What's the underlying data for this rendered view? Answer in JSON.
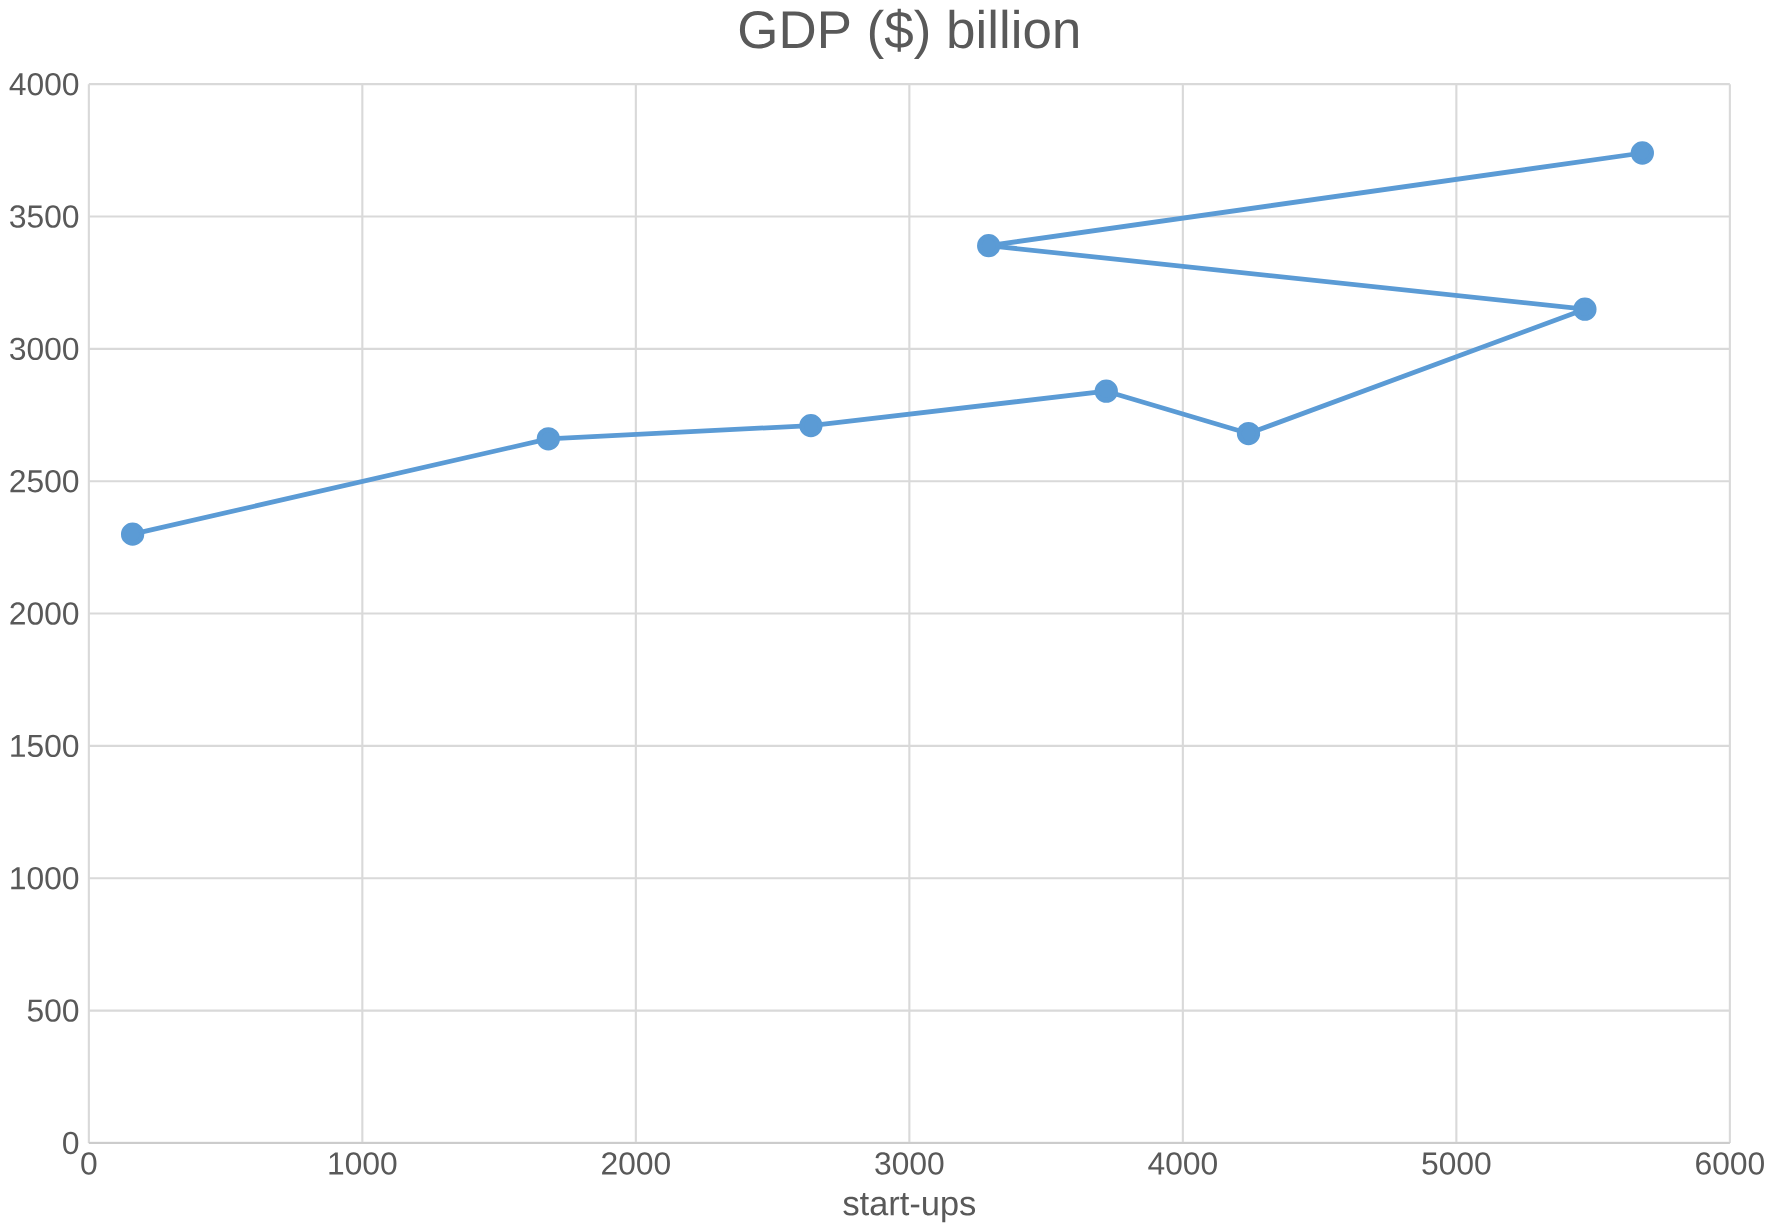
{
  "chart_data": {
    "type": "line",
    "title": "GDP ($) billion",
    "xlabel": "start-ups",
    "x": [
      160,
      1680,
      2640,
      3720,
      4240,
      5470,
      3290,
      5680
    ],
    "series": [
      {
        "color": "#5b9bd5",
        "values": [
          2300,
          2660,
          2710,
          2840,
          2680,
          3150,
          3390,
          3740
        ]
      }
    ],
    "xlim": [
      0,
      6000
    ],
    "xticks": [
      0,
      1000,
      2000,
      3000,
      4000,
      5000,
      6000
    ],
    "ylim": [
      0,
      4000
    ],
    "yticks": [
      0,
      500,
      1000,
      1500,
      2000,
      2500,
      3000,
      3500,
      4000
    ],
    "grid": true,
    "marker": "circle",
    "line_style": "solid"
  }
}
